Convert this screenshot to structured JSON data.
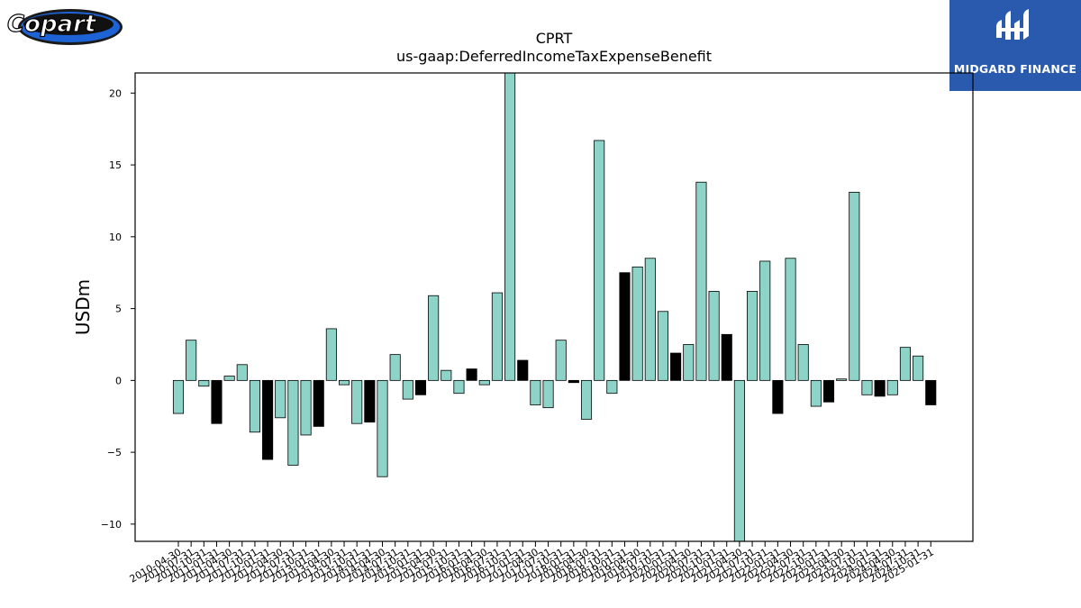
{
  "logos": {
    "left": {
      "text": "Copart",
      "icon": "copart-logo"
    },
    "right": {
      "text": "MIDGARD FINANCE",
      "icon": "midgard-finance-logo"
    }
  },
  "colors": {
    "positive": "#8dd3c7",
    "negative": "#000000",
    "right_logo_bg": "#2a5aad"
  },
  "chart_data": {
    "type": "bar",
    "title": "CPRT",
    "subtitle": "us-gaap:DeferredIncomeTaxExpenseBenefit",
    "xlabel": "",
    "ylabel": "USDm",
    "ylim": [
      -11.2,
      21.4
    ],
    "yticks": [
      -10,
      -5,
      0,
      5,
      10,
      15,
      20
    ],
    "grid": false,
    "categories": [
      "2010-04-30",
      "2010-07-31",
      "2010-10-31",
      "2011-01-31",
      "2011-04-30",
      "2011-07-31",
      "2011-10-31",
      "2012-01-31",
      "2012-04-30",
      "2012-07-31",
      "2012-10-31",
      "2013-01-31",
      "2013-04-30",
      "2013-07-31",
      "2013-10-31",
      "2014-01-31",
      "2014-04-30",
      "2014-07-31",
      "2014-10-31",
      "2015-01-31",
      "2015-04-30",
      "2015-07-31",
      "2015-10-31",
      "2016-01-31",
      "2016-04-30",
      "2016-07-31",
      "2016-10-31",
      "2017-01-31",
      "2017-04-30",
      "2017-07-31",
      "2017-10-31",
      "2018-01-31",
      "2018-04-30",
      "2018-07-31",
      "2018-10-31",
      "2019-01-31",
      "2019-04-30",
      "2019-07-31",
      "2019-10-31",
      "2020-01-31",
      "2020-04-30",
      "2020-07-31",
      "2020-10-31",
      "2021-01-31",
      "2021-04-30",
      "2021-07-31",
      "2021-10-31",
      "2022-01-31",
      "2022-04-30",
      "2022-07-31",
      "2022-10-31",
      "2023-01-31",
      "2023-04-30",
      "2023-07-31",
      "2023-10-31",
      "2024-01-31",
      "2024-04-30",
      "2024-07-31",
      "2024-10-31",
      "2025-01-31"
    ],
    "values": [
      -2.3,
      2.8,
      -0.4,
      -3.0,
      0.3,
      1.1,
      -3.6,
      -5.5,
      -2.6,
      -5.9,
      -3.8,
      -3.2,
      3.6,
      -0.3,
      -3.0,
      -2.9,
      -6.7,
      1.8,
      -1.3,
      -1.0,
      5.9,
      0.7,
      -0.9,
      0.8,
      -0.3,
      6.1,
      21.4,
      1.4,
      -1.7,
      -1.9,
      2.8,
      -0.15,
      -2.7,
      16.7,
      -0.9,
      7.5,
      7.9,
      8.5,
      4.8,
      1.9,
      2.5,
      13.8,
      6.2,
      3.2,
      -11.2,
      6.2,
      8.3,
      -2.3,
      8.5,
      2.5,
      -1.8,
      -1.5,
      0.1,
      13.1,
      -1.0,
      -1.1,
      -1.0,
      2.3,
      1.7,
      -1.7
    ],
    "bar_colors": [
      "teal",
      "teal",
      "teal",
      "black",
      "teal",
      "teal",
      "teal",
      "black",
      "teal",
      "teal",
      "teal",
      "black",
      "teal",
      "teal",
      "teal",
      "black",
      "teal",
      "teal",
      "teal",
      "black",
      "teal",
      "teal",
      "teal",
      "black",
      "teal",
      "teal",
      "teal",
      "black",
      "teal",
      "teal",
      "teal",
      "black",
      "teal",
      "teal",
      "teal",
      "black",
      "teal",
      "teal",
      "teal",
      "black",
      "teal",
      "teal",
      "teal",
      "black",
      "teal",
      "teal",
      "teal",
      "black",
      "teal",
      "teal",
      "teal",
      "black",
      "teal",
      "teal",
      "teal",
      "black",
      "teal",
      "teal",
      "teal",
      "black"
    ]
  }
}
